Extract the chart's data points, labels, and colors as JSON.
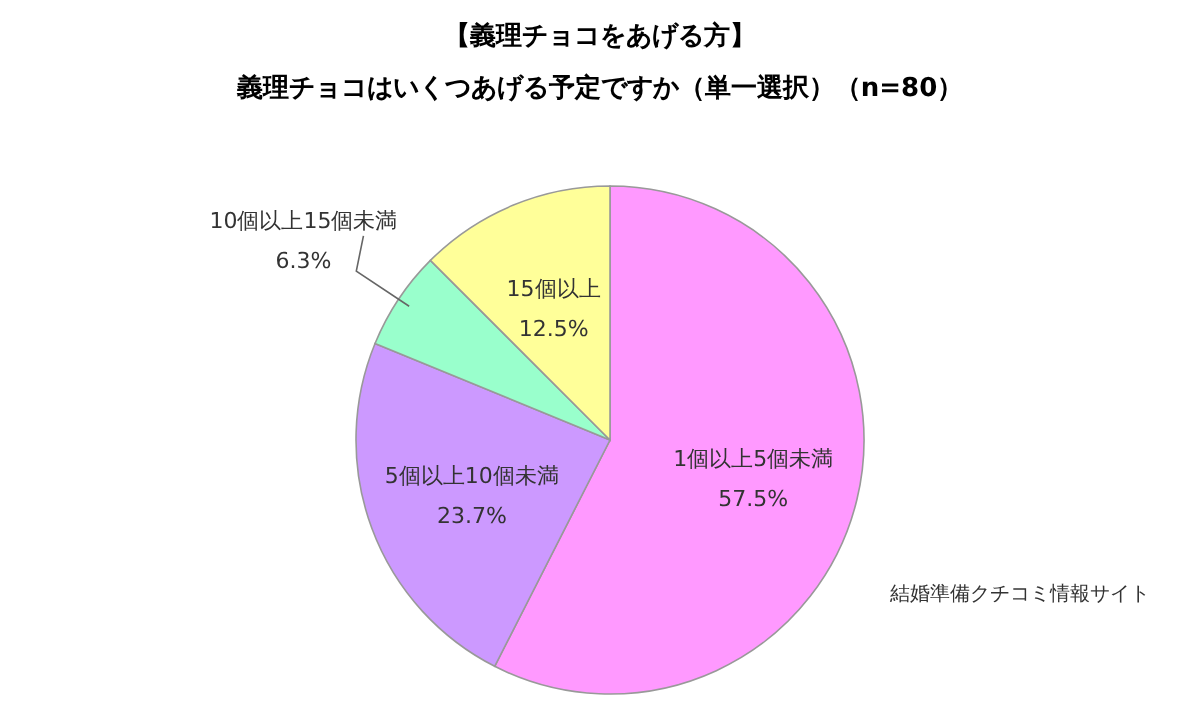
{
  "chart_data": {
    "type": "pie",
    "title": "【義理チョコをあげる方】",
    "subtitle": "義理チョコはいくつあげる予定ですか（単一選択）（n=80）",
    "categories": [
      "1個以上5個未満",
      "5個以上10個未満",
      "10個以上15個未満",
      "15個以上"
    ],
    "values": [
      57.5,
      23.7,
      6.3,
      12.5
    ],
    "value_labels": [
      "57.5%",
      "23.7%",
      "6.3%",
      "12.5%"
    ],
    "colors": [
      "#ff99ff",
      "#cc99ff",
      "#99ffcc",
      "#ffff99"
    ],
    "annotations": [
      "結婚準備クチコミ情報サイト"
    ]
  }
}
